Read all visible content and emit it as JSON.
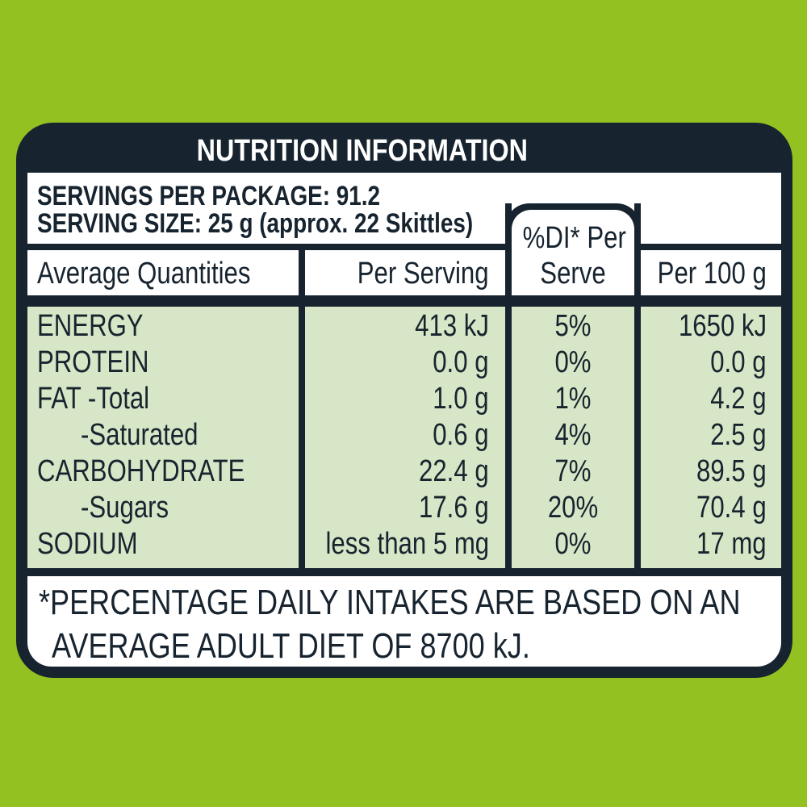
{
  "header": {
    "title": "NUTRITION INFORMATION"
  },
  "servings": {
    "per_package": "SERVINGS PER PACKAGE: 91.2",
    "serving_size": "SERVING SIZE: 25 g (approx. 22 Skittles)"
  },
  "columns": {
    "quantities": "Average Quantities",
    "per_serving": "Per Serving",
    "di_line1": "%DI* Per",
    "di_line2": "Serve",
    "per_100g": "Per 100 g"
  },
  "rows": [
    {
      "name": "ENERGY",
      "per_serving": "413 kJ",
      "di": "5%",
      "per_100g": "1650 kJ"
    },
    {
      "name": "PROTEIN",
      "per_serving": "0.0 g",
      "di": "0%",
      "per_100g": "0.0 g"
    },
    {
      "name": "FAT -Total",
      "per_serving": "1.0 g",
      "di": "1%",
      "per_100g": "4.2 g"
    },
    {
      "name": "-Saturated",
      "per_serving": "0.6 g",
      "di": "4%",
      "per_100g": "2.5 g"
    },
    {
      "name": "CARBOHYDRATE",
      "per_serving": "22.4 g",
      "di": "7%",
      "per_100g": "89.5 g"
    },
    {
      "name": "-Sugars",
      "per_serving": "17.6 g",
      "di": "20%",
      "per_100g": "70.4 g"
    },
    {
      "name": "SODIUM",
      "per_serving": "less than 5 mg",
      "di": "0%",
      "per_100g": "17 mg"
    }
  ],
  "footnote": {
    "line1": "*PERCENTAGE DAILY INTAKES ARE BASED ON AN",
    "line2": "AVERAGE ADULT DIET OF 8700 kJ."
  },
  "colors": {
    "background": "#93c121",
    "navy": "#17242f",
    "row_fill": "#d7e6c6",
    "panel_text": "#ffffff"
  }
}
